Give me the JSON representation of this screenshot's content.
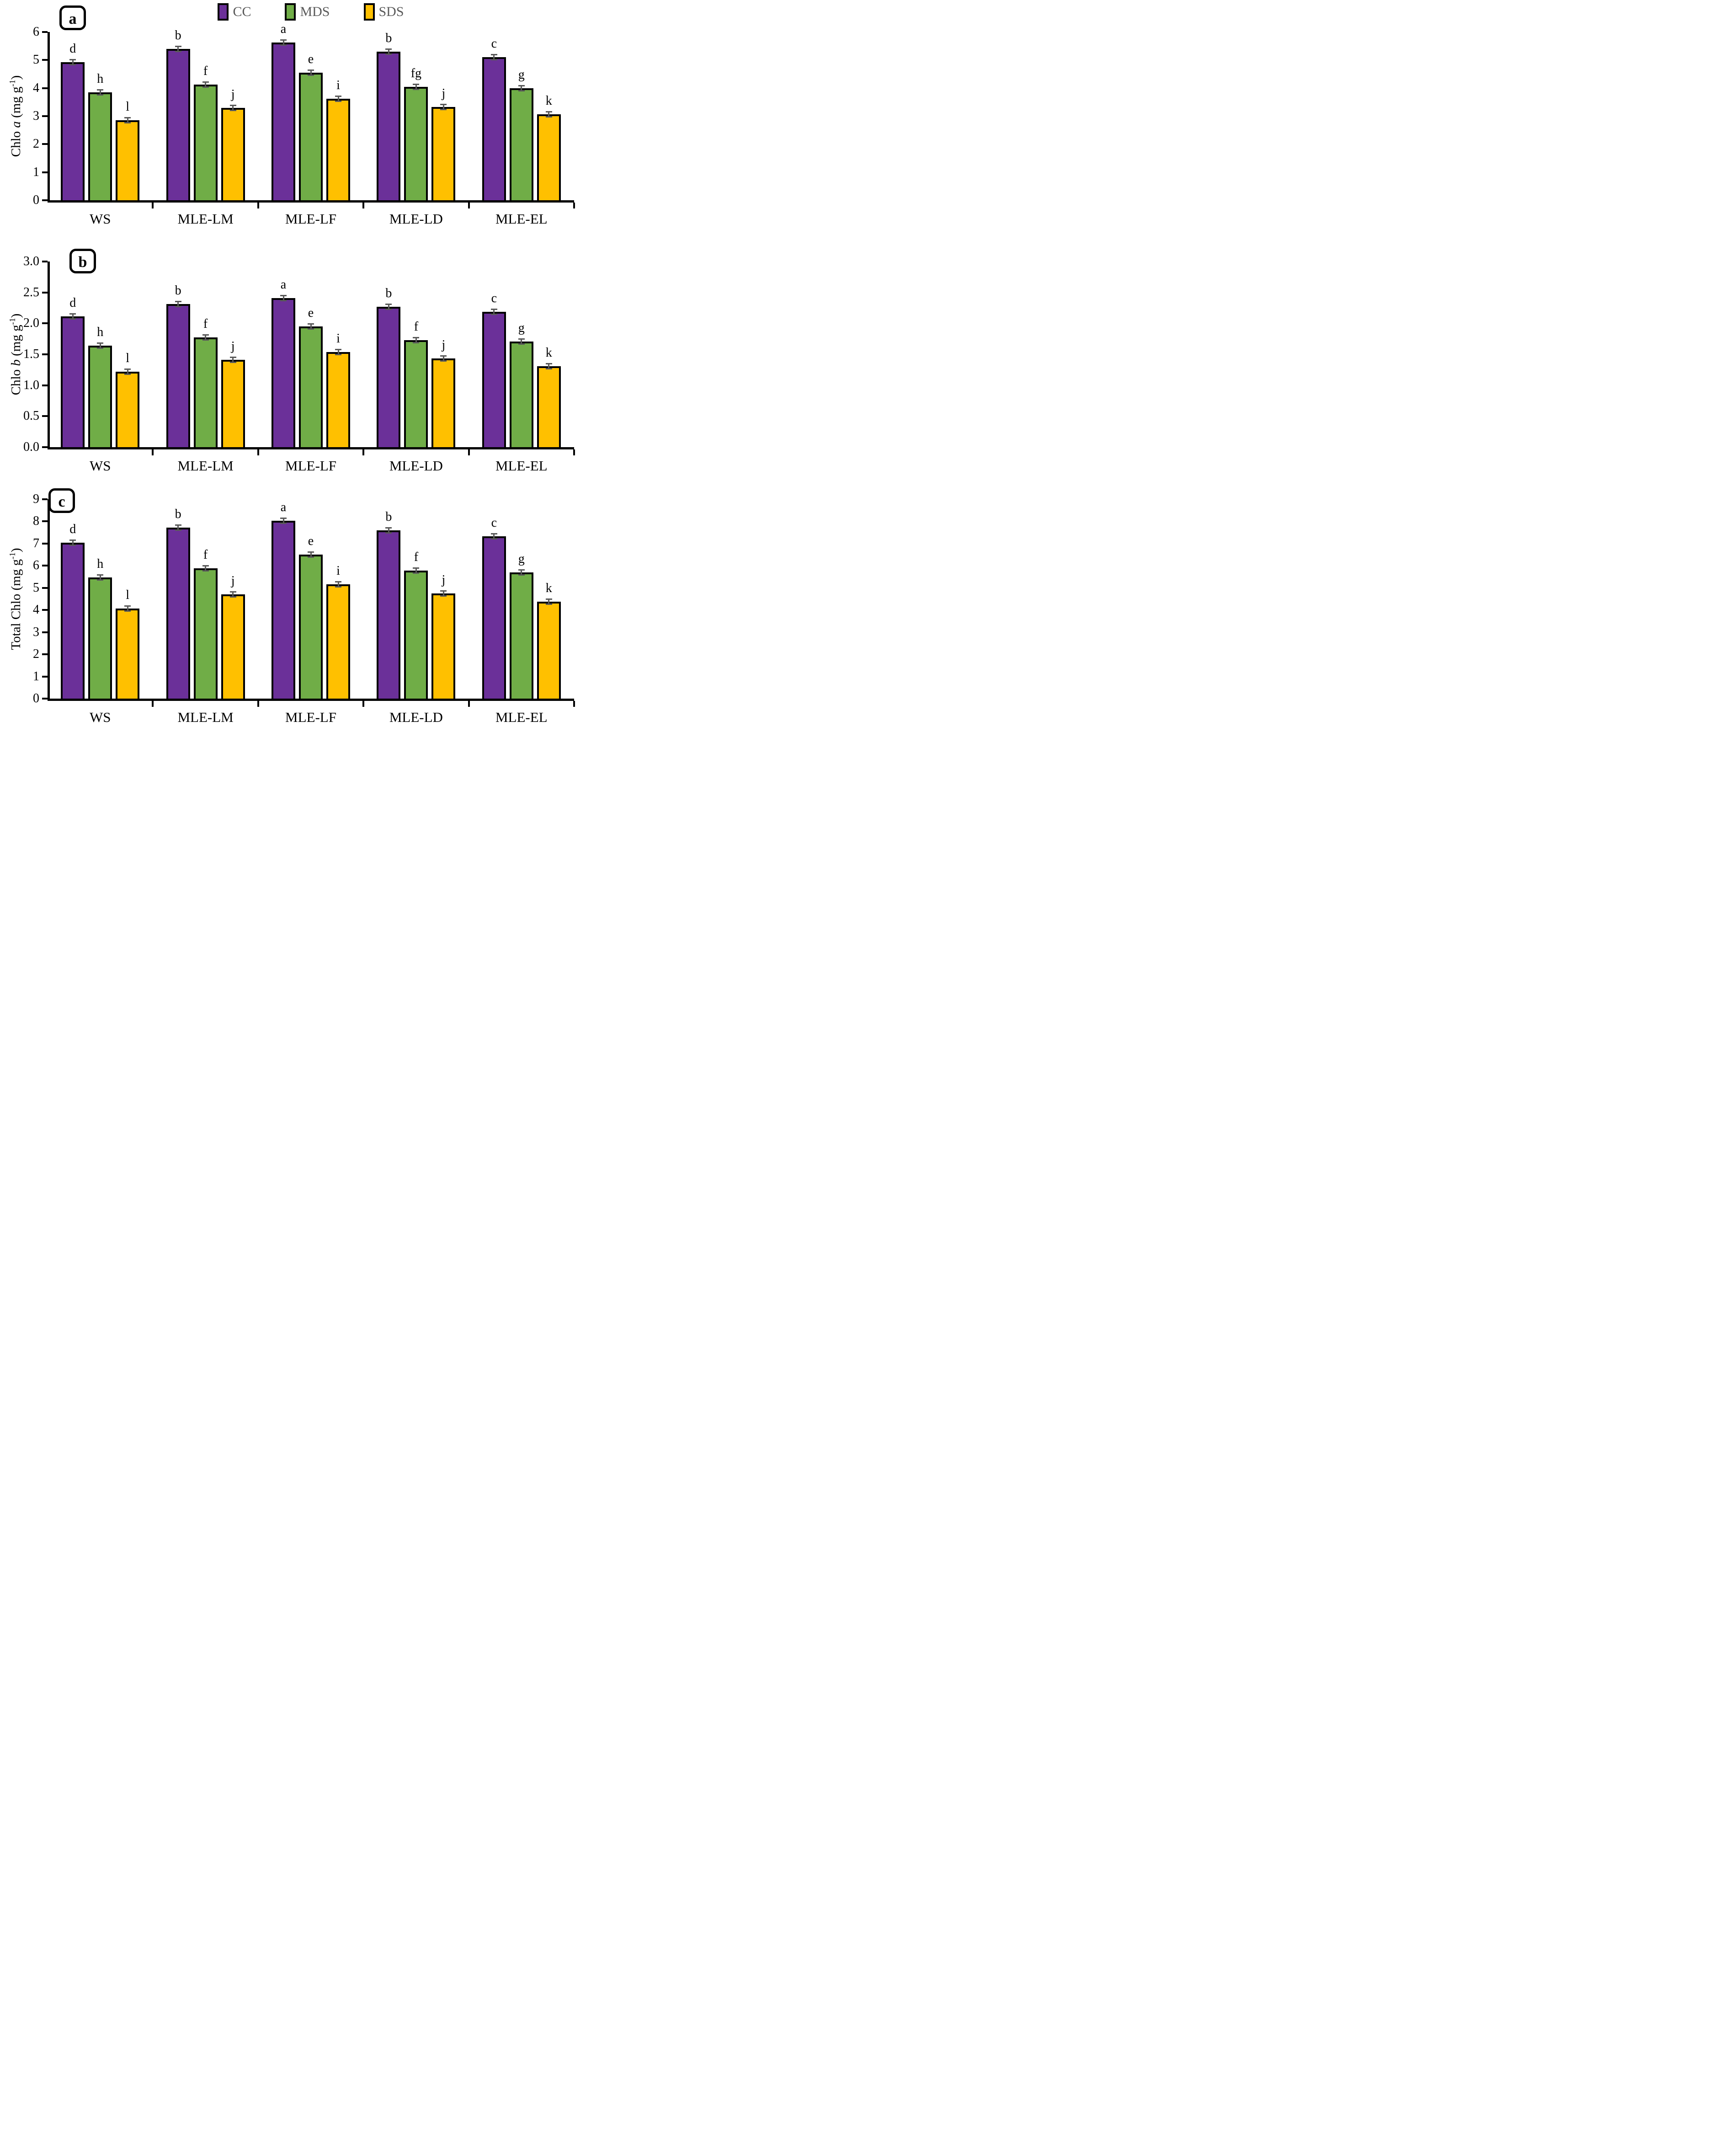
{
  "legend": {
    "position": "top",
    "items": [
      {
        "label": "CC",
        "color": "#6B3099"
      },
      {
        "label": "MDS",
        "color": "#70AD47"
      },
      {
        "label": "SDS",
        "color": "#FFC000"
      }
    ]
  },
  "colors": {
    "cc_purple": "#6B3099",
    "mds_green": "#70AD47",
    "sds_yellow": "#FFC000",
    "axis": "#000000",
    "error_bar": "#595959",
    "legend_text": "#595959"
  },
  "chart_data": [
    {
      "type": "bar",
      "panel_label": "a",
      "ylabel_parts": [
        {
          "t": "Chlo "
        },
        {
          "t": "a",
          "italic": true
        },
        {
          "t": " (mg g"
        },
        {
          "t": "-1",
          "sup": true
        },
        {
          "t": ")"
        }
      ],
      "ylim": [
        0,
        6
      ],
      "yticks": [
        "0",
        "1",
        "2",
        "3",
        "4",
        "5",
        "6"
      ],
      "grid": false,
      "error_bar_approx": 0.03,
      "categories": [
        "WS",
        "MLE-LM",
        "MLE-LF",
        "MLE-LD",
        "MLE-EL"
      ],
      "series": [
        {
          "name": "CC",
          "color": "#6B3099",
          "values": [
            4.92,
            5.4,
            5.62,
            5.3,
            5.1
          ],
          "letters": [
            "d",
            "b",
            "a",
            "b",
            "c"
          ]
        },
        {
          "name": "MDS",
          "color": "#70AD47",
          "values": [
            3.85,
            4.12,
            4.55,
            4.05,
            4.0
          ],
          "letters": [
            "h",
            "f",
            "e",
            "fg",
            "g"
          ]
        },
        {
          "name": "SDS",
          "color": "#FFC000",
          "values": [
            2.85,
            3.3,
            3.62,
            3.33,
            3.07
          ],
          "letters": [
            "l",
            "j",
            "i",
            "j",
            "k"
          ]
        }
      ]
    },
    {
      "type": "bar",
      "panel_label": "b",
      "ylabel_parts": [
        {
          "t": "Chlo "
        },
        {
          "t": "b",
          "italic": true
        },
        {
          "t": " (mg g"
        },
        {
          "t": "-1",
          "sup": true
        },
        {
          "t": ")"
        }
      ],
      "ylim": [
        0,
        3
      ],
      "yticks": [
        "0.0",
        "0.5",
        "1.0",
        "1.5",
        "2.0",
        "2.5",
        "3.0"
      ],
      "grid": false,
      "error_bar_approx": 0.02,
      "categories": [
        "WS",
        "MLE-LM",
        "MLE-LF",
        "MLE-LD",
        "MLE-EL"
      ],
      "series": [
        {
          "name": "CC",
          "color": "#6B3099",
          "values": [
            2.11,
            2.31,
            2.41,
            2.27,
            2.19
          ],
          "letters": [
            "d",
            "b",
            "a",
            "b",
            "c"
          ]
        },
        {
          "name": "MDS",
          "color": "#70AD47",
          "values": [
            1.64,
            1.77,
            1.95,
            1.73,
            1.71
          ],
          "letters": [
            "h",
            "f",
            "e",
            "f",
            "g"
          ]
        },
        {
          "name": "SDS",
          "color": "#FFC000",
          "values": [
            1.22,
            1.41,
            1.54,
            1.43,
            1.31
          ],
          "letters": [
            "l",
            "j",
            "i",
            "j",
            "k"
          ]
        }
      ]
    },
    {
      "type": "bar",
      "panel_label": "c",
      "ylabel_parts": [
        {
          "t": "Total Chlo (mg g"
        },
        {
          "t": "-1",
          "sup": true
        },
        {
          "t": ")"
        }
      ],
      "ylim": [
        0,
        9
      ],
      "yticks": [
        "0",
        "1",
        "2",
        "3",
        "4",
        "5",
        "6",
        "7",
        "8",
        "9"
      ],
      "grid": false,
      "error_bar_approx": 0.04,
      "categories": [
        "WS",
        "MLE-LM",
        "MLE-LF",
        "MLE-LD",
        "MLE-EL"
      ],
      "series": [
        {
          "name": "CC",
          "color": "#6B3099",
          "values": [
            7.03,
            7.72,
            8.03,
            7.6,
            7.32
          ],
          "letters": [
            "d",
            "b",
            "a",
            "b",
            "c"
          ]
        },
        {
          "name": "MDS",
          "color": "#70AD47",
          "values": [
            5.48,
            5.89,
            6.5,
            5.78,
            5.7
          ],
          "letters": [
            "h",
            "f",
            "e",
            "f",
            "g"
          ]
        },
        {
          "name": "SDS",
          "color": "#FFC000",
          "values": [
            4.06,
            4.7,
            5.17,
            4.75,
            4.37
          ],
          "letters": [
            "l",
            "j",
            "i",
            "j",
            "k"
          ]
        }
      ]
    }
  ]
}
